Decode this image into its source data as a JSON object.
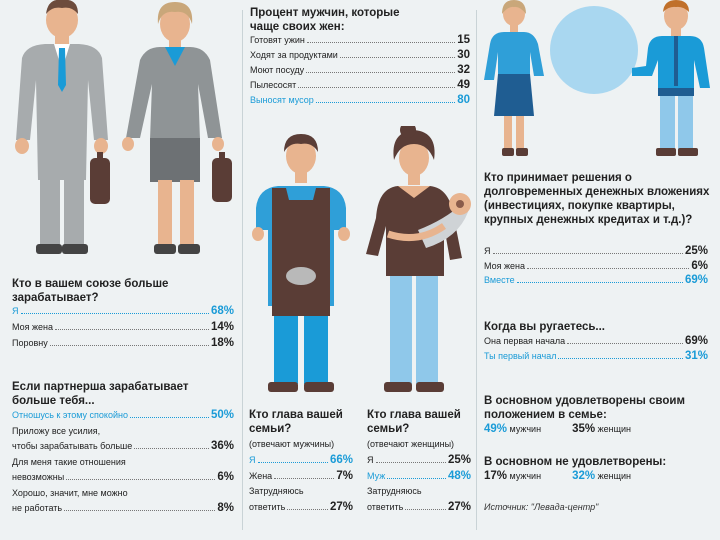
{
  "colors": {
    "accent": "#1a9bd7",
    "text": "#222222",
    "background": "#eef2f3"
  },
  "left": {
    "q1": {
      "title": "Кто в вашем союзе больше зарабатывает?",
      "rows": [
        {
          "label": "Я",
          "value": "68%",
          "highlight": true
        },
        {
          "label": "Моя жена",
          "value": "14%",
          "highlight": false
        },
        {
          "label": "Поровну",
          "value": "18%",
          "highlight": false
        }
      ]
    },
    "q2": {
      "title": "Если партнерша зарабатывает больше тебя...",
      "rows": [
        {
          "label": "Отношусь к этому спокойно",
          "value": "50%",
          "highlight": true
        },
        {
          "label": "Приложу все усилия,",
          "value": "",
          "highlight": false
        },
        {
          "label": "чтобы зарабатывать больше",
          "value": "36%",
          "highlight": false
        },
        {
          "label": "Для меня такие отношения",
          "value": "",
          "highlight": false
        },
        {
          "label": "невозможны",
          "value": "6%",
          "highlight": false
        },
        {
          "label": "Хорошо, значит, мне можно",
          "value": "",
          "highlight": false
        },
        {
          "label": "не работать",
          "value": "8%",
          "highlight": false
        }
      ]
    }
  },
  "middle": {
    "q": {
      "title": "Процент мужчин, которые чаще своих жен:",
      "rows": [
        {
          "label": "Готовят ужин",
          "value": "15",
          "highlight": false
        },
        {
          "label": "Ходят за продуктами",
          "value": "30",
          "highlight": false
        },
        {
          "label": "Моют посуду",
          "value": "32",
          "highlight": false
        },
        {
          "label": "Пылесосят",
          "value": "49",
          "highlight": false
        },
        {
          "label": "Выносят мусор",
          "value": "80",
          "highlight": true
        }
      ]
    },
    "men": {
      "title": "Кто глава вашей семьи?",
      "subtitle": "(отвечают мужчины)",
      "rows": [
        {
          "label": "Я",
          "value": "66%",
          "highlight": true
        },
        {
          "label": "Жена",
          "value": "7%",
          "highlight": false
        },
        {
          "label": "Затрудняюсь",
          "value": "",
          "highlight": false
        },
        {
          "label": "ответить",
          "value": "27%",
          "highlight": false
        }
      ]
    },
    "women": {
      "title": "Кто глава вашей семьи?",
      "subtitle": "(отвечают женщины)",
      "rows": [
        {
          "label": "Я",
          "value": "25%",
          "highlight": false
        },
        {
          "label": "Муж",
          "value": "48%",
          "highlight": true
        },
        {
          "label": "Затрудняюсь",
          "value": "",
          "highlight": false
        },
        {
          "label": "ответить",
          "value": "27%",
          "highlight": false
        }
      ]
    }
  },
  "right": {
    "q1": {
      "title": "Кто принимает решения о долговременных денежных вложениях (инвестициях, покупке квартиры, крупных денежных кредитах и т.д.)?",
      "rows": [
        {
          "label": "Я",
          "value": "25%",
          "highlight": false
        },
        {
          "label": "Моя жена",
          "value": "6%",
          "highlight": false
        },
        {
          "label": "Вместе",
          "value": "69%",
          "highlight": true
        }
      ]
    },
    "q2": {
      "title": "Когда вы ругаетесь...",
      "rows": [
        {
          "label": "Она первая начала",
          "value": "69%",
          "highlight": false
        },
        {
          "label": "Ты первый начал",
          "value": "31%",
          "highlight": true
        }
      ]
    },
    "sat": {
      "title": "В основном удовлетворены своим положением в семье:",
      "men_value": "49%",
      "men_label": "мужчин",
      "women_value": "35%",
      "women_label": "женщин"
    },
    "unsat": {
      "title": "В основном не удовлетворены:",
      "men_value": "17%",
      "men_label": "мужчин",
      "women_value": "32%",
      "women_label": "женщин"
    },
    "source": "Источник: \"Левада-центр\""
  }
}
